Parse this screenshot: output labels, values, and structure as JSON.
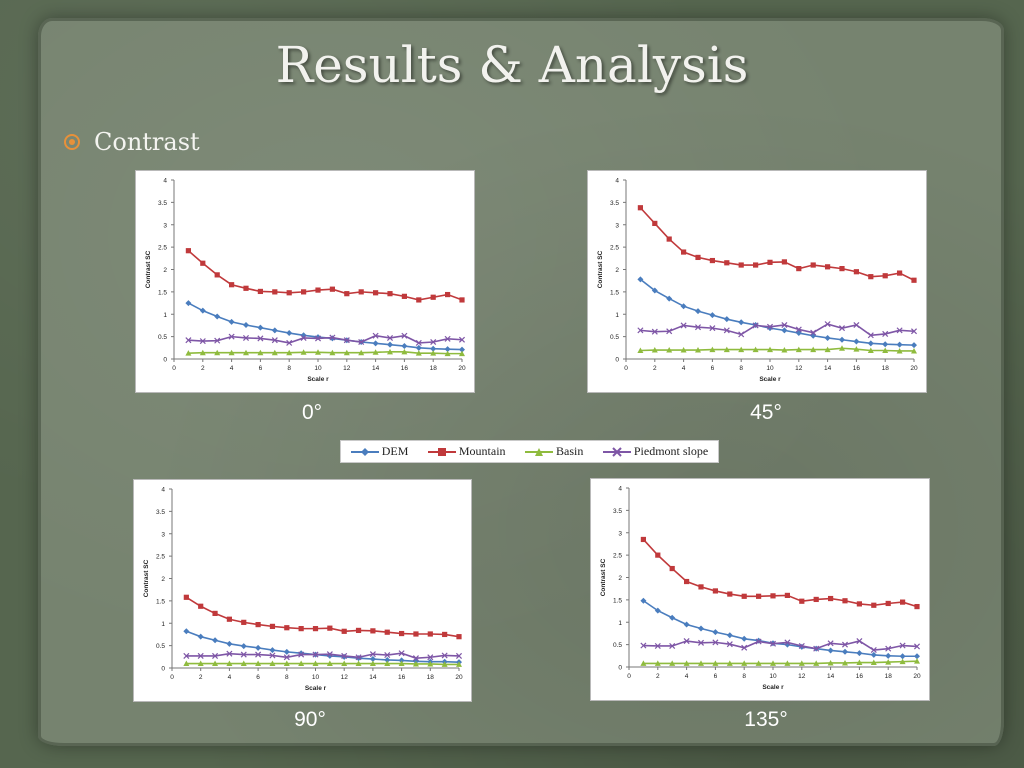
{
  "slide": {
    "title": "Results & Analysis",
    "bullet": "Contrast"
  },
  "legend": [
    {
      "name": "DEM",
      "color": "#4a7dbe",
      "marker": "diamond"
    },
    {
      "name": "Mountain",
      "color": "#c0393b",
      "marker": "square"
    },
    {
      "name": "Basin",
      "color": "#8fbb3e",
      "marker": "triangle"
    },
    {
      "name": "Piedmont slope",
      "color": "#7e56a6",
      "marker": "x"
    }
  ],
  "chart_data": [
    {
      "type": "line",
      "angle_label": "0°",
      "xlabel": "Scale r",
      "ylabel": "Contrast SC",
      "xlim": [
        0,
        20
      ],
      "ylim": [
        0,
        4
      ],
      "x_ticks": [
        0,
        2,
        4,
        6,
        8,
        10,
        12,
        14,
        16,
        18,
        20
      ],
      "y_ticks": [
        0,
        0.5,
        1,
        1.5,
        2,
        2.5,
        3,
        3.5,
        4
      ],
      "x": [
        1,
        2,
        3,
        4,
        5,
        6,
        7,
        8,
        9,
        10,
        11,
        12,
        13,
        14,
        15,
        16,
        17,
        18,
        19,
        20
      ],
      "series": [
        {
          "name": "DEM",
          "values": [
            1.25,
            1.08,
            0.95,
            0.83,
            0.76,
            0.7,
            0.64,
            0.58,
            0.53,
            0.49,
            0.46,
            0.42,
            0.38,
            0.35,
            0.32,
            0.29,
            0.25,
            0.23,
            0.22,
            0.21
          ]
        },
        {
          "name": "Mountain",
          "values": [
            2.42,
            2.14,
            1.88,
            1.66,
            1.58,
            1.51,
            1.5,
            1.48,
            1.5,
            1.54,
            1.56,
            1.46,
            1.5,
            1.48,
            1.46,
            1.4,
            1.32,
            1.38,
            1.44,
            1.32
          ]
        },
        {
          "name": "Basin",
          "values": [
            0.13,
            0.14,
            0.14,
            0.14,
            0.14,
            0.14,
            0.14,
            0.14,
            0.15,
            0.15,
            0.14,
            0.14,
            0.14,
            0.15,
            0.16,
            0.16,
            0.13,
            0.13,
            0.12,
            0.12
          ]
        },
        {
          "name": "Piedmont slope",
          "values": [
            0.42,
            0.4,
            0.41,
            0.5,
            0.47,
            0.46,
            0.42,
            0.36,
            0.47,
            0.46,
            0.48,
            0.42,
            0.38,
            0.52,
            0.47,
            0.52,
            0.36,
            0.38,
            0.45,
            0.43
          ]
        }
      ]
    },
    {
      "type": "line",
      "angle_label": "45°",
      "xlabel": "Scale r",
      "ylabel": "Contrast SC",
      "xlim": [
        0,
        20
      ],
      "ylim": [
        0,
        4
      ],
      "x_ticks": [
        0,
        2,
        4,
        6,
        8,
        10,
        12,
        14,
        16,
        18,
        20
      ],
      "y_ticks": [
        0,
        0.5,
        1,
        1.5,
        2,
        2.5,
        3,
        3.5,
        4
      ],
      "x": [
        1,
        2,
        3,
        4,
        5,
        6,
        7,
        8,
        9,
        10,
        11,
        12,
        13,
        14,
        15,
        16,
        17,
        18,
        19,
        20
      ],
      "series": [
        {
          "name": "DEM",
          "values": [
            1.78,
            1.53,
            1.35,
            1.18,
            1.07,
            0.98,
            0.89,
            0.82,
            0.76,
            0.69,
            0.64,
            0.58,
            0.52,
            0.47,
            0.43,
            0.39,
            0.35,
            0.33,
            0.32,
            0.31
          ]
        },
        {
          "name": "Mountain",
          "values": [
            3.38,
            3.03,
            2.68,
            2.39,
            2.27,
            2.2,
            2.15,
            2.1,
            2.1,
            2.16,
            2.17,
            2.02,
            2.1,
            2.06,
            2.02,
            1.95,
            1.84,
            1.86,
            1.92,
            1.76
          ]
        },
        {
          "name": "Basin",
          "values": [
            0.19,
            0.2,
            0.2,
            0.2,
            0.2,
            0.21,
            0.21,
            0.21,
            0.21,
            0.21,
            0.2,
            0.21,
            0.21,
            0.21,
            0.24,
            0.22,
            0.19,
            0.19,
            0.18,
            0.18
          ]
        },
        {
          "name": "Piedmont slope",
          "values": [
            0.64,
            0.61,
            0.62,
            0.75,
            0.71,
            0.69,
            0.64,
            0.55,
            0.75,
            0.72,
            0.76,
            0.66,
            0.59,
            0.78,
            0.69,
            0.76,
            0.53,
            0.56,
            0.64,
            0.62
          ]
        }
      ]
    },
    {
      "type": "line",
      "angle_label": "90°",
      "xlabel": "Scale r",
      "ylabel": "Contrast SC",
      "xlim": [
        0,
        20
      ],
      "ylim": [
        0,
        4
      ],
      "x_ticks": [
        0,
        2,
        4,
        6,
        8,
        10,
        12,
        14,
        16,
        18,
        20
      ],
      "y_ticks": [
        0,
        0.5,
        1,
        1.5,
        2,
        2.5,
        3,
        3.5,
        4
      ],
      "x": [
        1,
        2,
        3,
        4,
        5,
        6,
        7,
        8,
        9,
        10,
        11,
        12,
        13,
        14,
        15,
        16,
        17,
        18,
        19,
        20
      ],
      "series": [
        {
          "name": "DEM",
          "values": [
            0.82,
            0.7,
            0.62,
            0.54,
            0.49,
            0.45,
            0.4,
            0.36,
            0.33,
            0.3,
            0.27,
            0.25,
            0.22,
            0.2,
            0.18,
            0.17,
            0.15,
            0.14,
            0.14,
            0.13
          ]
        },
        {
          "name": "Mountain",
          "values": [
            1.58,
            1.38,
            1.22,
            1.09,
            1.02,
            0.97,
            0.93,
            0.9,
            0.88,
            0.88,
            0.89,
            0.82,
            0.84,
            0.83,
            0.8,
            0.77,
            0.76,
            0.76,
            0.75,
            0.7
          ]
        },
        {
          "name": "Basin",
          "values": [
            0.1,
            0.1,
            0.1,
            0.1,
            0.1,
            0.1,
            0.1,
            0.1,
            0.1,
            0.1,
            0.1,
            0.1,
            0.1,
            0.1,
            0.1,
            0.1,
            0.09,
            0.09,
            0.08,
            0.08
          ]
        },
        {
          "name": "Piedmont slope",
          "values": [
            0.27,
            0.27,
            0.27,
            0.32,
            0.3,
            0.3,
            0.28,
            0.24,
            0.3,
            0.3,
            0.31,
            0.27,
            0.24,
            0.31,
            0.29,
            0.33,
            0.22,
            0.24,
            0.28,
            0.27
          ]
        }
      ]
    },
    {
      "type": "line",
      "angle_label": "135°",
      "xlabel": "Scale r",
      "ylabel": "Contrast SC",
      "xlim": [
        0,
        20
      ],
      "ylim": [
        0,
        4
      ],
      "x_ticks": [
        0,
        2,
        4,
        6,
        8,
        10,
        12,
        14,
        16,
        18,
        20
      ],
      "y_ticks": [
        0,
        0.5,
        1,
        1.5,
        2,
        2.5,
        3,
        3.5,
        4
      ],
      "x": [
        1,
        2,
        3,
        4,
        5,
        6,
        7,
        8,
        9,
        10,
        11,
        12,
        13,
        14,
        15,
        16,
        17,
        18,
        19,
        20
      ],
      "series": [
        {
          "name": "DEM",
          "values": [
            1.48,
            1.26,
            1.1,
            0.95,
            0.86,
            0.78,
            0.71,
            0.63,
            0.59,
            0.53,
            0.5,
            0.45,
            0.41,
            0.37,
            0.34,
            0.31,
            0.27,
            0.25,
            0.24,
            0.24
          ]
        },
        {
          "name": "Mountain",
          "values": [
            2.85,
            2.5,
            2.2,
            1.91,
            1.79,
            1.7,
            1.63,
            1.58,
            1.58,
            1.59,
            1.6,
            1.47,
            1.51,
            1.53,
            1.48,
            1.41,
            1.38,
            1.42,
            1.45,
            1.35
          ]
        },
        {
          "name": "Basin",
          "values": [
            0.08,
            0.08,
            0.08,
            0.08,
            0.08,
            0.08,
            0.08,
            0.08,
            0.08,
            0.08,
            0.08,
            0.08,
            0.08,
            0.09,
            0.09,
            0.1,
            0.1,
            0.11,
            0.12,
            0.13
          ]
        },
        {
          "name": "Piedmont slope",
          "values": [
            0.48,
            0.47,
            0.47,
            0.58,
            0.54,
            0.55,
            0.51,
            0.43,
            0.57,
            0.52,
            0.55,
            0.47,
            0.41,
            0.53,
            0.5,
            0.58,
            0.38,
            0.41,
            0.48,
            0.46
          ]
        }
      ]
    }
  ]
}
